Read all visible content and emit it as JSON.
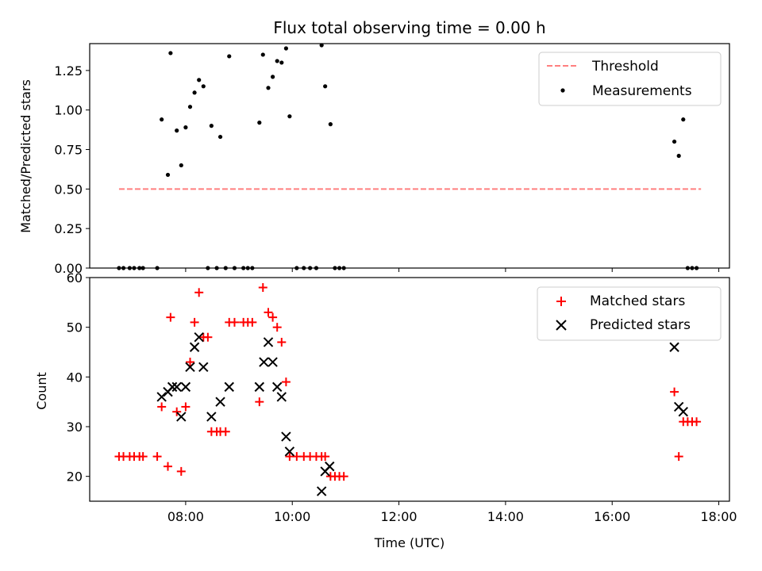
{
  "chart_data": [
    {
      "type": "scatter",
      "title": "Flux total observing time = 0.00 h",
      "ylabel": "Matched/Predicted stars",
      "xlim": [
        "06:12",
        "18:12"
      ],
      "ylim": [
        0,
        1.42
      ],
      "yticks": [
        "0.00",
        "0.25",
        "0.50",
        "0.75",
        "1.00",
        "1.25"
      ],
      "legend": {
        "placement": "top-right",
        "entries": [
          "Threshold",
          "Measurements"
        ]
      },
      "threshold": {
        "name": "Threshold",
        "y": 0.5,
        "x_start": "06:45",
        "x_end": "17:40",
        "color": "#ff7f7f",
        "style": "dashed"
      },
      "series": [
        {
          "name": "Measurements",
          "marker": "dot",
          "color": "#000000",
          "points": [
            [
              "06:45",
              0
            ],
            [
              "06:50",
              0
            ],
            [
              "06:57",
              0
            ],
            [
              "07:02",
              0
            ],
            [
              "07:08",
              0
            ],
            [
              "07:12",
              0
            ],
            [
              "07:28",
              0
            ],
            [
              "07:33",
              0.94
            ],
            [
              "07:40",
              0.59
            ],
            [
              "07:43",
              1.36
            ],
            [
              "07:50",
              0.87
            ],
            [
              "07:55",
              0.65
            ],
            [
              "08:00",
              0.89
            ],
            [
              "08:05",
              1.02
            ],
            [
              "08:10",
              1.11
            ],
            [
              "08:15",
              1.19
            ],
            [
              "08:20",
              1.15
            ],
            [
              "08:25",
              0
            ],
            [
              "08:29",
              0.9
            ],
            [
              "08:35",
              0
            ],
            [
              "08:39",
              0.83
            ],
            [
              "08:45",
              0
            ],
            [
              "08:49",
              1.34
            ],
            [
              "08:55",
              0
            ],
            [
              "09:05",
              0
            ],
            [
              "09:10",
              0
            ],
            [
              "09:15",
              0
            ],
            [
              "09:23",
              0.92
            ],
            [
              "09:27",
              1.35
            ],
            [
              "09:33",
              1.14
            ],
            [
              "09:38",
              1.21
            ],
            [
              "09:43",
              1.31
            ],
            [
              "09:48",
              1.3
            ],
            [
              "09:53",
              1.39
            ],
            [
              "09:57",
              0.96
            ],
            [
              "10:05",
              0
            ],
            [
              "10:13",
              0
            ],
            [
              "10:20",
              0
            ],
            [
              "10:27",
              0
            ],
            [
              "10:33",
              1.41
            ],
            [
              "10:37",
              1.15
            ],
            [
              "10:43",
              0.91
            ],
            [
              "10:48",
              0
            ],
            [
              "10:53",
              0
            ],
            [
              "10:58",
              0
            ],
            [
              "17:10",
              0.8
            ],
            [
              "17:15",
              0.71
            ],
            [
              "17:20",
              0.94
            ],
            [
              "17:25",
              0
            ],
            [
              "17:30",
              0
            ],
            [
              "17:35",
              0
            ]
          ]
        }
      ]
    },
    {
      "type": "scatter",
      "xlabel": "Time (UTC)",
      "ylabel": "Count",
      "xlim": [
        "06:12",
        "18:12"
      ],
      "ylim": [
        15,
        60
      ],
      "xticks": [
        "08:00",
        "10:00",
        "12:00",
        "14:00",
        "16:00",
        "18:00"
      ],
      "yticks": [
        "20",
        "30",
        "40",
        "50",
        "60"
      ],
      "legend": {
        "placement": "top-right",
        "entries": [
          "Matched stars",
          "Predicted stars"
        ]
      },
      "series": [
        {
          "name": "Matched stars",
          "marker": "plus",
          "color": "#ff0000",
          "points": [
            [
              "06:45",
              24
            ],
            [
              "06:50",
              24
            ],
            [
              "06:57",
              24
            ],
            [
              "07:02",
              24
            ],
            [
              "07:08",
              24
            ],
            [
              "07:12",
              24
            ],
            [
              "07:28",
              24
            ],
            [
              "07:33",
              34
            ],
            [
              "07:40",
              22
            ],
            [
              "07:43",
              52
            ],
            [
              "07:50",
              33
            ],
            [
              "07:55",
              21
            ],
            [
              "08:00",
              34
            ],
            [
              "08:05",
              43
            ],
            [
              "08:10",
              51
            ],
            [
              "08:15",
              57
            ],
            [
              "08:20",
              48
            ],
            [
              "08:25",
              48
            ],
            [
              "08:29",
              29
            ],
            [
              "08:35",
              29
            ],
            [
              "08:39",
              29
            ],
            [
              "08:45",
              29
            ],
            [
              "08:49",
              51
            ],
            [
              "08:55",
              51
            ],
            [
              "09:05",
              51
            ],
            [
              "09:10",
              51
            ],
            [
              "09:15",
              51
            ],
            [
              "09:23",
              35
            ],
            [
              "09:27",
              58
            ],
            [
              "09:33",
              53
            ],
            [
              "09:38",
              52
            ],
            [
              "09:43",
              50
            ],
            [
              "09:48",
              47
            ],
            [
              "09:53",
              39
            ],
            [
              "09:57",
              24
            ],
            [
              "10:05",
              24
            ],
            [
              "10:13",
              24
            ],
            [
              "10:20",
              24
            ],
            [
              "10:27",
              24
            ],
            [
              "10:33",
              24
            ],
            [
              "10:37",
              24
            ],
            [
              "10:43",
              20
            ],
            [
              "10:48",
              20
            ],
            [
              "10:53",
              20
            ],
            [
              "10:58",
              20
            ],
            [
              "17:10",
              37
            ],
            [
              "17:15",
              24
            ],
            [
              "17:20",
              31
            ],
            [
              "17:25",
              31
            ],
            [
              "17:30",
              31
            ],
            [
              "17:35",
              31
            ]
          ]
        },
        {
          "name": "Predicted stars",
          "marker": "x",
          "color": "#000000",
          "points": [
            [
              "07:33",
              36
            ],
            [
              "07:40",
              37
            ],
            [
              "07:45",
              38
            ],
            [
              "07:50",
              38
            ],
            [
              "07:55",
              32
            ],
            [
              "08:00",
              38
            ],
            [
              "08:05",
              42
            ],
            [
              "08:10",
              46
            ],
            [
              "08:15",
              48
            ],
            [
              "08:20",
              42
            ],
            [
              "08:29",
              32
            ],
            [
              "08:39",
              35
            ],
            [
              "08:49",
              38
            ],
            [
              "09:23",
              38
            ],
            [
              "09:28",
              43
            ],
            [
              "09:33",
              47
            ],
            [
              "09:38",
              43
            ],
            [
              "09:43",
              38
            ],
            [
              "09:48",
              36
            ],
            [
              "09:53",
              28
            ],
            [
              "09:57",
              25
            ],
            [
              "10:33",
              17
            ],
            [
              "10:37",
              21
            ],
            [
              "10:42",
              22
            ],
            [
              "17:10",
              46
            ],
            [
              "17:15",
              34
            ],
            [
              "17:20",
              33
            ]
          ]
        }
      ]
    }
  ]
}
